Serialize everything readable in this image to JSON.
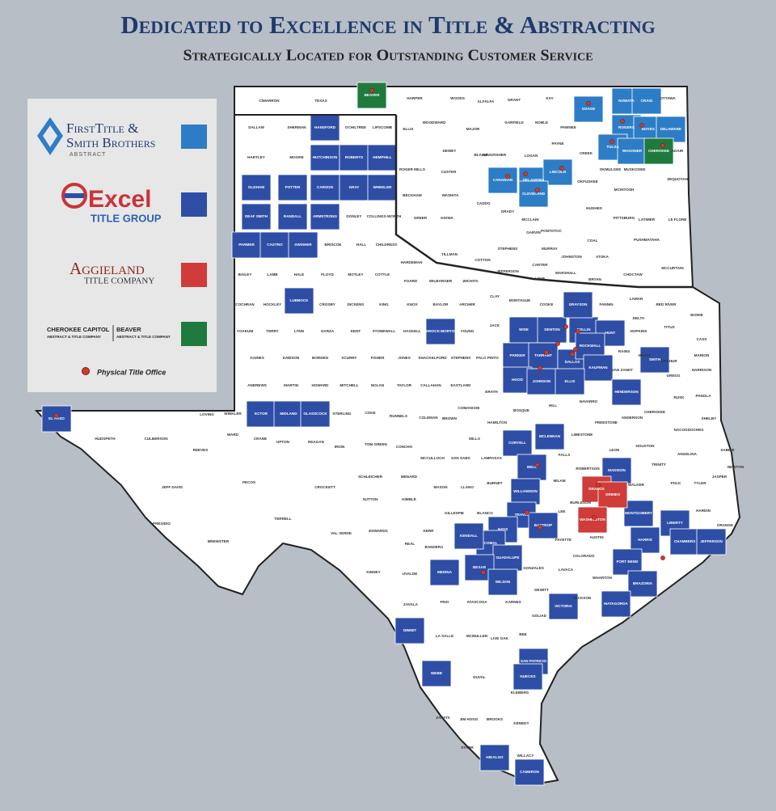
{
  "header": {
    "title": "Dedicated to Excellence in Title & Abstracting",
    "subtitle": "Strategically Located for Outstanding Customer Service"
  },
  "legend": {
    "items": [
      {
        "name": "FirstTitle &",
        "name2": "Smith Brothers",
        "tagline": "Abstract",
        "color": "#2d7dc6",
        "counties": [
          "OSAGE",
          "NOWATA",
          "CRAIG",
          "ROGERS",
          "MAYES",
          "DELAWARE",
          "TULSA",
          "WAGONER",
          "CANADIAN",
          "OKLAHOMA",
          "LINCOLN",
          "CLEVELAND"
        ]
      },
      {
        "name": "Excel",
        "tagline": "Title Group",
        "color": "#2e4ea6",
        "counties": [
          "HANSFORD",
          "HUTCHINSON",
          "ROBERTS",
          "HEMPHILL",
          "OLDHAM",
          "POTTER",
          "CARSON",
          "GRAY",
          "WHEELER",
          "DEAF SMITH",
          "RANDALL",
          "ARMSTRONG",
          "PARMER",
          "CASTRO",
          "SWISHER",
          "LUBBOCK",
          "THROCK-MORTON",
          "WISE",
          "DENTON",
          "COLLIN",
          "GRAYSON",
          "HUNT",
          "PARKER",
          "TARRANT",
          "DALLAS",
          "ROCKWALL",
          "KAUFMAN",
          "HOOD",
          "JOHNSON",
          "ELLIS",
          "SMITH",
          "HENDERSON",
          "ECTOR",
          "MIDLAND",
          "GLASSCOCK",
          "EL PASO",
          "CORYELL",
          "MCLENNAN",
          "BELL",
          "WILLIAMSON",
          "TRAVIS",
          "HAYS",
          "BASTROP",
          "COMAL",
          "GUADALUPE",
          "KENDALL",
          "BEXAR",
          "WILSON",
          "MEDINA",
          "MADISON",
          "MONTGOMERY",
          "LIBERTY",
          "HARRIS",
          "CHAMBERS",
          "JEFFERSON",
          "FORT BEND",
          "BRAZORIA",
          "MATAGORDA",
          "VICTORIA",
          "DIMMIT",
          "WEBB",
          "SAN PATRICIO",
          "NUECES",
          "HIDALGO",
          "CAMERON"
        ]
      },
      {
        "name": "Aggieland",
        "tagline": "Title Company",
        "color": "#cf3c3a",
        "counties": [
          "BRAZOS",
          "GRIMES",
          "WASHINGTON"
        ]
      },
      {
        "name": "Cherokee Capitol",
        "tagline": "Abstract & Title Company",
        "name2": "Beaver",
        "tagline2": "Abstract & Title Company",
        "color": "#1f7a3e",
        "counties": [
          "BEAVER",
          "CHEROKEE"
        ]
      }
    ],
    "office": "Physical Title Office"
  },
  "other_counties": [
    "CIMARRON",
    "TEXAS",
    "HARPER",
    "WOODS",
    "ALFALFA",
    "GRANT",
    "KAY",
    "OTTAWA",
    "DALLAM",
    "SHERMAN",
    "OCHILTREE",
    "LIPSCOMB",
    "HARTLEY",
    "MOORE",
    "DONLEY",
    "COLLINGS-WORTH",
    "BRISCOE",
    "HALL",
    "CHILDRESS",
    "BAILEY",
    "LAMB",
    "HALE",
    "FLOYD",
    "MOTLEY",
    "COTTLE",
    "COCHRAN",
    "HOCKLEY",
    "CROSBY",
    "DICKENS",
    "KING",
    "YOAKUM",
    "TERRY",
    "LYNN",
    "GARZA",
    "KENT",
    "STONEWALL",
    "GAINES",
    "DAWSON",
    "BORDEN",
    "SCURRY",
    "FISHER",
    "ANDREWS",
    "MARTIN",
    "HOWARD",
    "MITCHELL",
    "NOLAN",
    "HUDSPETH",
    "CULBERSON",
    "REEVES",
    "JEFF DAVIS",
    "PECOS",
    "PRESIDIO",
    "BREWSTER",
    "TERRELL",
    "CROCKETT",
    "VAL VERDE",
    "LOVING",
    "WINKLER",
    "WARD",
    "CRANE",
    "UPTON",
    "REAGAN",
    "IRION",
    "STERLING",
    "COKE",
    "TOM GREEN",
    "KINNEY",
    "UVALDE",
    "ZAVALA",
    "FRIO",
    "LA SALLE",
    "MCMULLEN",
    "DUVAL",
    "ZAPATA",
    "JIM HOGG",
    "STARR",
    "BROOKS",
    "KENEDY",
    "WILLACY",
    "KLEBERG",
    "LIVE OAK",
    "BEE",
    "GOLIAD",
    "KARNES",
    "ATASCOSA",
    "DEWITT",
    "GONZALES",
    "LAVACA",
    "JACKSON",
    "WHARTON",
    "COLORADO",
    "FAYETTE",
    "AUSTIN",
    "LEE",
    "BURLESON",
    "MILAM",
    "ROBERTSON",
    "FALLS",
    "LIMESTONE",
    "FREESTONE",
    "LEON",
    "HOUSTON",
    "TRINITY",
    "WALKER",
    "POLK",
    "TYLER",
    "HARDIN",
    "ORANGE",
    "NAVARRO",
    "HILL",
    "BOSQUE",
    "ERATH",
    "COMANCHE",
    "BROWN",
    "COLEMAN",
    "RUNNELS",
    "HAMILTON",
    "MILLS",
    "LAMPASAS",
    "SAN SABA",
    "MCCULLOCH",
    "CONCHO",
    "SCHLEICHER",
    "SUTTON",
    "MENARD",
    "KIMBLE",
    "MASON",
    "LLANO",
    "BURNET",
    "GILLESPIE",
    "BLANCO",
    "KERR",
    "EDWARDS",
    "REAL",
    "BANDERA",
    "TAYLOR",
    "CALLAHAN",
    "EASTLAND",
    "JONES",
    "SHACKELFORD",
    "STEPHENS",
    "PALO PINTO",
    "YOUNG",
    "JACK",
    "HASKELL",
    "KNOX",
    "BAYLOR",
    "ARCHER",
    "CLAY",
    "MONTAGUE",
    "COOKE",
    "FANNIN",
    "LAMAR",
    "RED RIVER",
    "DELTA",
    "HOPKINS",
    "TITUS",
    "BOWIE",
    "CASS",
    "MARION",
    "HARRISON",
    "UPSHUR",
    "WOOD",
    "RAINS",
    "VAN ZANDT",
    "GREGG",
    "RUSK",
    "PANOLA",
    "CHEROKEE",
    "ANDERSON",
    "NACOGDOCHES",
    "SHELBY",
    "ANGELINA",
    "SABINE",
    "JASPER",
    "NEWTON",
    "HARDEMAN",
    "FOARD",
    "WILBARGER",
    "WICHITA",
    "ELLIS",
    "WOODWARD",
    "MAJOR",
    "GARFIELD",
    "NOBLE",
    "PAWNEE",
    "PAYNE",
    "DEWEY",
    "BLAINE",
    "KINGFISHER",
    "LOGAN",
    "CREEK",
    "OKMULGEE",
    "MUSKOGEE",
    "ADAIR",
    "SEQUOYAH",
    "ROGER MILLS",
    "CUSTER",
    "BECKHAM",
    "WASHITA",
    "CADDO",
    "KIOWA",
    "GREER",
    "GRADY",
    "MCCLAIN",
    "GARVIN",
    "OKFUSKEE",
    "MCINTOSH",
    "PITTSBURG",
    "LATIMER",
    "LE FLORE",
    "HUGHES",
    "PONTOTOC",
    "COAL",
    "MURRAY",
    "JOHNSTON",
    "ATOKA",
    "PUSHMATAHA",
    "STEPHENS",
    "COTTON",
    "TILLMAN",
    "JEFFERSON",
    "CARTER",
    "LOVE",
    "MARSHALL",
    "BRYAN",
    "CHOCTAW",
    "MCCURTAIN"
  ]
}
